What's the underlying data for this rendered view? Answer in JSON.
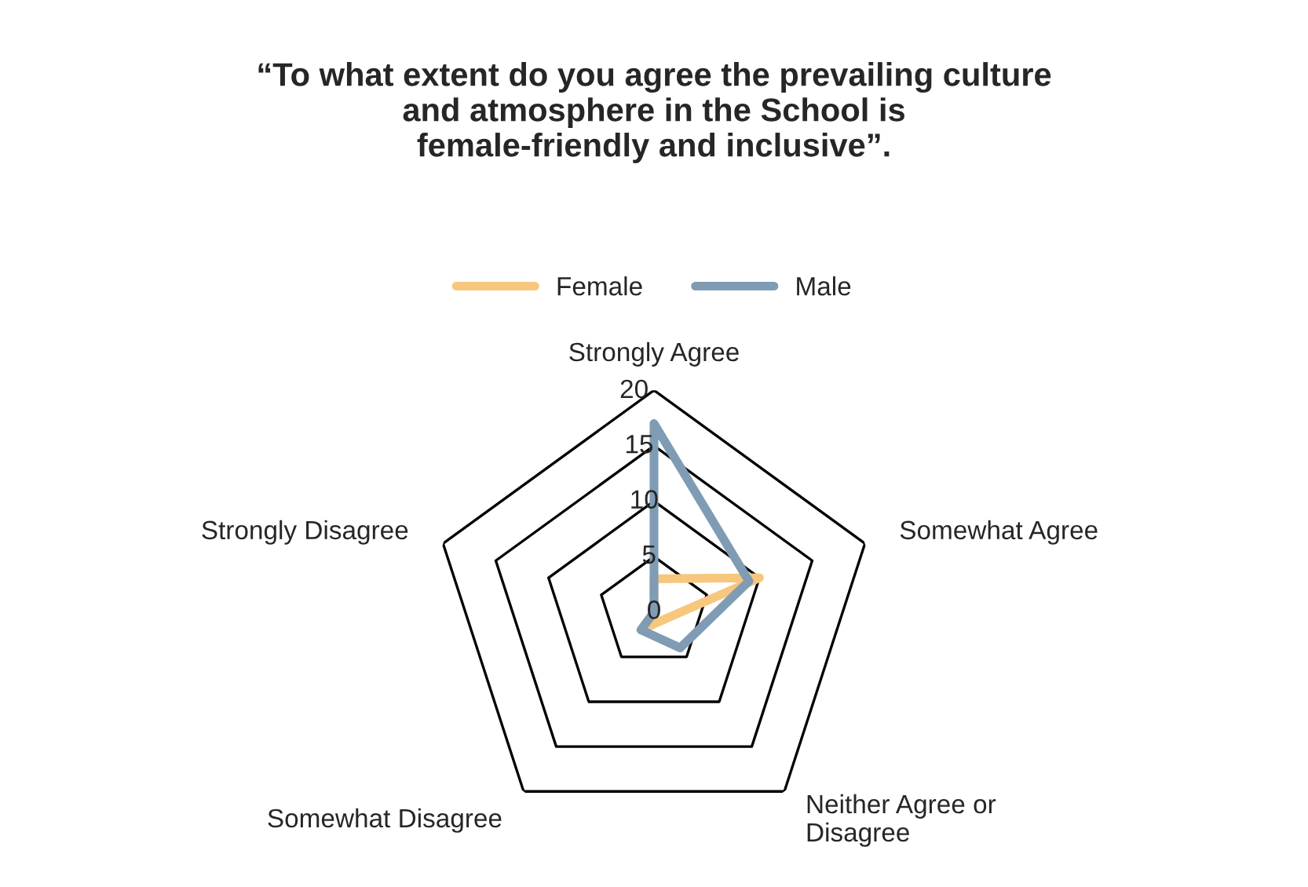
{
  "chart_data": {
    "type": "radar",
    "title": "“To what extent do you agree the prevailing culture\nand atmosphere in the School is\nfemale-friendly and inclusive”.",
    "categories": [
      "Strongly Agree",
      "Somewhat Agree",
      "Neither Agree or\nDisagree",
      "Somewhat Disagree",
      "Strongly Disagree"
    ],
    "series": [
      {
        "name": "Female",
        "color": "#f7c77e",
        "values": [
          3,
          10,
          1,
          2,
          0
        ]
      },
      {
        "name": "Male",
        "color": "#7f9cb4",
        "values": [
          17,
          9,
          4,
          2,
          0
        ]
      }
    ],
    "ylim": [
      0,
      20
    ],
    "yticks": [
      0,
      5,
      10,
      15,
      20
    ],
    "grid": true,
    "legend": "top",
    "marker": "none"
  }
}
